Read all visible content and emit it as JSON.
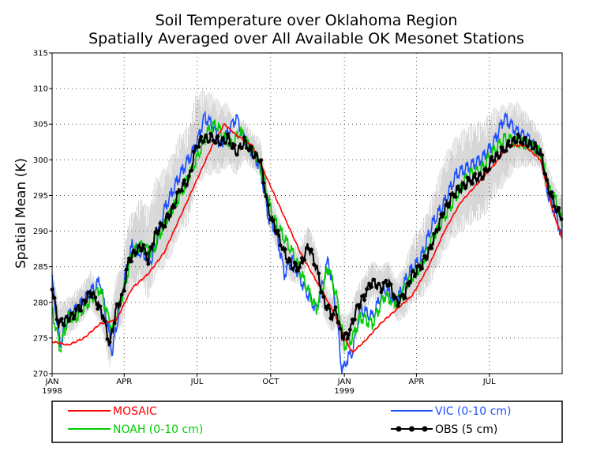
{
  "chart_data": {
    "type": "line",
    "title": "Soil Temperature over Oklahoma Region",
    "subtitle": "Spatially Averaged over All Available OK Mesonet Stations",
    "xlabel": "",
    "ylabel": "Spatial Mean (K)",
    "ylim": [
      270,
      315
    ],
    "yticks": [
      270,
      275,
      280,
      285,
      290,
      295,
      300,
      305,
      310,
      315
    ],
    "x_range_days": [
      0,
      637
    ],
    "xticks": [
      {
        "day": 0,
        "label": "JAN",
        "year": "1998"
      },
      {
        "day": 90,
        "label": "APR",
        "year": ""
      },
      {
        "day": 181,
        "label": "JUL",
        "year": ""
      },
      {
        "day": 273,
        "label": "OCT",
        "year": ""
      },
      {
        "day": 365,
        "label": "JAN",
        "year": "1999"
      },
      {
        "day": 455,
        "label": "APR",
        "year": ""
      },
      {
        "day": 546,
        "label": "JUL",
        "year": ""
      }
    ],
    "grid": true,
    "legend_position": "bottom",
    "colors": {
      "mosaic": "#ff0000",
      "noah": "#00cc00",
      "vic": "#1e50ff",
      "obs": "#000000",
      "range": "#d6d6d6"
    },
    "series": [
      {
        "name": "MOSAIC",
        "color": "#ff0000",
        "x": [
          0,
          20,
          40,
          60,
          80,
          100,
          120,
          140,
          160,
          180,
          200,
          215,
          230,
          250,
          270,
          290,
          310,
          330,
          350,
          365,
          375,
          390,
          410,
          430,
          450,
          470,
          490,
          510,
          530,
          550,
          570,
          590,
          610,
          625,
          637
        ],
        "y": [
          274.5,
          274,
          275,
          277,
          277.5,
          282,
          284,
          287,
          292,
          297,
          302,
          305,
          303.5,
          302,
          297,
          292,
          287,
          283,
          279,
          275,
          273,
          274.5,
          277,
          279,
          281,
          285,
          290,
          294,
          296.5,
          299,
          302,
          302,
          300,
          293,
          289
        ]
      },
      {
        "name": "NOAH (0-10 cm)",
        "color": "#00cc00",
        "x": [
          0,
          10,
          20,
          30,
          45,
          60,
          75,
          90,
          100,
          110,
          125,
          140,
          160,
          180,
          195,
          205,
          215,
          225,
          235,
          245,
          255,
          265,
          275,
          285,
          300,
          315,
          330,
          345,
          355,
          365,
          375,
          385,
          400,
          415,
          430,
          445,
          460,
          475,
          490,
          505,
          520,
          535,
          550,
          565,
          580,
          595,
          610,
          620,
          630,
          637
        ],
        "y": [
          279,
          273.5,
          278,
          278,
          280,
          282,
          276,
          282,
          287,
          288,
          287,
          291,
          295,
          300,
          304,
          305,
          303,
          302,
          304,
          302,
          300.5,
          297,
          292,
          290,
          287,
          283,
          279,
          285,
          281,
          274,
          275,
          278,
          277,
          281,
          280,
          283,
          285,
          289,
          292,
          295,
          298,
          298.5,
          301,
          303,
          302.5,
          302,
          301,
          296,
          294,
          291
        ]
      },
      {
        "name": "VIC (0-10 cm)",
        "color": "#1e50ff",
        "x": [
          0,
          10,
          20,
          30,
          45,
          60,
          75,
          90,
          100,
          110,
          125,
          140,
          160,
          180,
          190,
          200,
          210,
          220,
          230,
          240,
          250,
          260,
          270,
          280,
          290,
          300,
          315,
          330,
          345,
          355,
          362,
          368,
          375,
          385,
          400,
          415,
          430,
          445,
          460,
          475,
          490,
          505,
          520,
          535,
          550,
          565,
          580,
          595,
          610,
          620,
          630,
          637
        ],
        "y": [
          283,
          274,
          278,
          279,
          281,
          283,
          273,
          283,
          288,
          287,
          286,
          293,
          298,
          302,
          306,
          305,
          302,
          304,
          306,
          303,
          301,
          299,
          292,
          290,
          284,
          286,
          282,
          279,
          286,
          279,
          270,
          272,
          273,
          279,
          278,
          282,
          280,
          284,
          286,
          291,
          294,
          298,
          299,
          300,
          302,
          306,
          304,
          303,
          301,
          295,
          292,
          289
        ]
      },
      {
        "name": "OBS (5 cm)",
        "color": "#000000",
        "marker": "circle",
        "x": [
          0,
          8,
          16,
          24,
          32,
          40,
          48,
          56,
          64,
          72,
          80,
          88,
          96,
          104,
          112,
          120,
          130,
          140,
          150,
          160,
          170,
          180,
          190,
          200,
          210,
          220,
          230,
          240,
          250,
          260,
          270,
          280,
          290,
          300,
          310,
          320,
          330,
          340,
          350,
          355,
          360,
          365,
          372,
          380,
          390,
          400,
          410,
          420,
          430,
          440,
          450,
          460,
          470,
          480,
          490,
          500,
          510,
          520,
          530,
          540,
          550,
          560,
          570,
          580,
          590,
          600,
          610,
          620,
          630,
          637
        ],
        "y": [
          282,
          277,
          277.5,
          278,
          279,
          280,
          281.5,
          280,
          278,
          274,
          279,
          281,
          286,
          287,
          288,
          286,
          290,
          291,
          293,
          296,
          297,
          302,
          303,
          303,
          302.5,
          303,
          301,
          302.5,
          301,
          300,
          293,
          290,
          287,
          285,
          285,
          288,
          285,
          280,
          278,
          279,
          276,
          275,
          276,
          279,
          281,
          283,
          282,
          283,
          280,
          281,
          284,
          285,
          287,
          290,
          293,
          295,
          296,
          297,
          297.5,
          298,
          300,
          301,
          302,
          303,
          302.5,
          302,
          301,
          296,
          293,
          292
        ]
      }
    ]
  },
  "legend": [
    {
      "label": "MOSAIC",
      "color": "#ff0000",
      "marker": false
    },
    {
      "label": "NOAH (0-10 cm)",
      "color": "#00cc00",
      "marker": false
    },
    {
      "label": "VIC (0-10 cm)",
      "color": "#1e50ff",
      "marker": false
    },
    {
      "label": "OBS (5 cm)",
      "color": "#000000",
      "marker": true
    }
  ]
}
